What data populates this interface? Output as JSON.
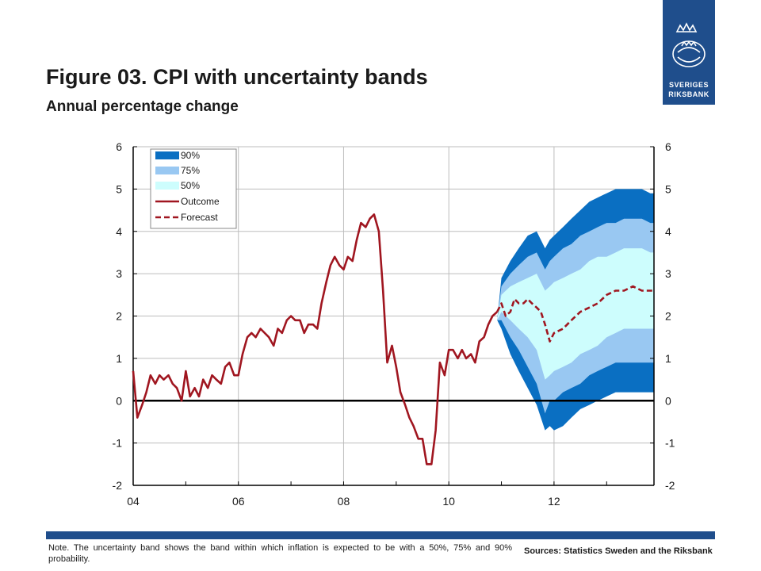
{
  "header": {
    "title": "Figure 03. CPI with uncertainty bands",
    "subtitle": "Annual percentage change"
  },
  "logo": {
    "line1": "SVERIGES",
    "line2": "RIKSBANK"
  },
  "footer": {
    "note": "Note. The uncertainty band shows the band within which inflation is expected to be with a 50%, 75% and 90% probability.",
    "sources": "Sources: Statistics Sweden and the Riksbank"
  },
  "colors": {
    "band90": "#0a6fc2",
    "band75": "#99c8f2",
    "band50": "#cdfdfd",
    "outcome": "#a01620",
    "forecast": "#a01620",
    "brand": "#1f4e8c"
  },
  "chart_data": {
    "type": "line",
    "title": "",
    "xlabel": "",
    "ylabel": "",
    "xlim": [
      2004.0,
      2013.9
    ],
    "ylim": [
      -2,
      6
    ],
    "y_ticks": [
      6,
      5,
      4,
      3,
      2,
      1,
      0,
      -1,
      -2
    ],
    "x_ticks": [
      {
        "value": 2004,
        "label": "04"
      },
      {
        "value": 2006,
        "label": "06"
      },
      {
        "value": 2008,
        "label": "08"
      },
      {
        "value": 2010,
        "label": "10"
      },
      {
        "value": 2012,
        "label": "12"
      }
    ],
    "grid": true,
    "legend": {
      "position": "top-left",
      "entries": [
        "90%",
        "75%",
        "50%",
        "Outcome",
        "Forecast"
      ]
    },
    "outcome": {
      "name": "Outcome",
      "x": [
        2004.0,
        2004.08,
        2004.17,
        2004.25,
        2004.33,
        2004.42,
        2004.5,
        2004.58,
        2004.67,
        2004.75,
        2004.83,
        2004.92,
        2005.0,
        2005.08,
        2005.17,
        2005.25,
        2005.33,
        2005.42,
        2005.5,
        2005.58,
        2005.67,
        2005.75,
        2005.83,
        2005.92,
        2006.0,
        2006.08,
        2006.17,
        2006.25,
        2006.33,
        2006.42,
        2006.5,
        2006.58,
        2006.67,
        2006.75,
        2006.83,
        2006.92,
        2007.0,
        2007.08,
        2007.17,
        2007.25,
        2007.33,
        2007.42,
        2007.5,
        2007.58,
        2007.67,
        2007.75,
        2007.83,
        2007.92,
        2008.0,
        2008.08,
        2008.17,
        2008.25,
        2008.33,
        2008.42,
        2008.5,
        2008.58,
        2008.67,
        2008.75,
        2008.83,
        2008.92,
        2009.0,
        2009.08,
        2009.17,
        2009.25,
        2009.33,
        2009.42,
        2009.5,
        2009.58,
        2009.67,
        2009.75,
        2009.83,
        2009.92,
        2010.0,
        2010.08,
        2010.17,
        2010.25,
        2010.33,
        2010.42,
        2010.5,
        2010.58,
        2010.67,
        2010.75,
        2010.83,
        2010.92
      ],
      "values": [
        0.7,
        -0.4,
        -0.1,
        0.2,
        0.6,
        0.4,
        0.6,
        0.5,
        0.6,
        0.4,
        0.3,
        0.0,
        0.7,
        0.1,
        0.3,
        0.1,
        0.5,
        0.3,
        0.6,
        0.5,
        0.4,
        0.8,
        0.9,
        0.6,
        0.6,
        1.1,
        1.5,
        1.6,
        1.5,
        1.7,
        1.6,
        1.5,
        1.3,
        1.7,
        1.6,
        1.9,
        2.0,
        1.9,
        1.9,
        1.6,
        1.8,
        1.8,
        1.7,
        2.3,
        2.8,
        3.2,
        3.4,
        3.2,
        3.1,
        3.4,
        3.3,
        3.8,
        4.2,
        4.1,
        4.3,
        4.4,
        4.0,
        2.6,
        0.9,
        1.3,
        0.8,
        0.2,
        -0.1,
        -0.4,
        -0.6,
        -0.9,
        -0.9,
        -1.5,
        -1.5,
        -0.7,
        0.9,
        0.6,
        1.2,
        1.2,
        1.0,
        1.2,
        1.0,
        1.1,
        0.9,
        1.4,
        1.5,
        1.8,
        2.0,
        2.1
      ]
    },
    "forecast": {
      "name": "Forecast",
      "x": [
        2010.92,
        2011.0,
        2011.08,
        2011.17,
        2011.25,
        2011.33,
        2011.42,
        2011.5,
        2011.58,
        2011.67,
        2011.75,
        2011.83,
        2011.92,
        2012.0,
        2012.17,
        2012.33,
        2012.5,
        2012.67,
        2012.83,
        2013.0,
        2013.17,
        2013.33,
        2013.5,
        2013.67,
        2013.83,
        2013.9
      ],
      "values": [
        2.1,
        2.3,
        2.0,
        2.1,
        2.4,
        2.3,
        2.3,
        2.4,
        2.3,
        2.2,
        2.1,
        1.8,
        1.4,
        1.6,
        1.7,
        1.9,
        2.1,
        2.2,
        2.3,
        2.5,
        2.6,
        2.6,
        2.7,
        2.6,
        2.6,
        2.6
      ]
    },
    "bands": {
      "x": [
        2010.92,
        2011.0,
        2011.17,
        2011.33,
        2011.5,
        2011.67,
        2011.83,
        2011.92,
        2012.0,
        2012.17,
        2012.33,
        2012.5,
        2012.67,
        2012.83,
        2013.0,
        2013.17,
        2013.33,
        2013.5,
        2013.67,
        2013.83,
        2013.9
      ],
      "upper90": [
        1.9,
        2.9,
        3.3,
        3.6,
        3.9,
        4.0,
        3.6,
        3.8,
        3.9,
        4.1,
        4.3,
        4.5,
        4.7,
        4.8,
        4.9,
        5.0,
        5.0,
        5.0,
        5.0,
        4.9,
        4.9
      ],
      "upper75": [
        1.9,
        2.7,
        3.0,
        3.2,
        3.4,
        3.5,
        3.1,
        3.3,
        3.4,
        3.6,
        3.7,
        3.9,
        4.0,
        4.1,
        4.2,
        4.2,
        4.3,
        4.3,
        4.3,
        4.2,
        4.2
      ],
      "upper50": [
        1.9,
        2.5,
        2.7,
        2.8,
        2.9,
        3.0,
        2.6,
        2.7,
        2.8,
        2.9,
        3.0,
        3.1,
        3.3,
        3.4,
        3.4,
        3.5,
        3.6,
        3.6,
        3.6,
        3.5,
        3.5
      ],
      "lower50": [
        1.9,
        2.1,
        1.9,
        1.7,
        1.5,
        1.2,
        0.5,
        0.6,
        0.7,
        0.8,
        0.9,
        1.1,
        1.2,
        1.3,
        1.5,
        1.6,
        1.7,
        1.7,
        1.7,
        1.7,
        1.7
      ],
      "lower75": [
        1.9,
        1.9,
        1.5,
        1.2,
        0.8,
        0.4,
        -0.3,
        0.0,
        0.0,
        0.2,
        0.3,
        0.4,
        0.6,
        0.7,
        0.8,
        0.9,
        0.9,
        0.9,
        0.9,
        0.9,
        0.9
      ],
      "lower90": [
        1.9,
        1.7,
        1.1,
        0.7,
        0.3,
        -0.1,
        -0.7,
        -0.6,
        -0.7,
        -0.6,
        -0.4,
        -0.2,
        -0.1,
        0.0,
        0.1,
        0.2,
        0.2,
        0.2,
        0.2,
        0.2,
        0.2
      ]
    }
  }
}
